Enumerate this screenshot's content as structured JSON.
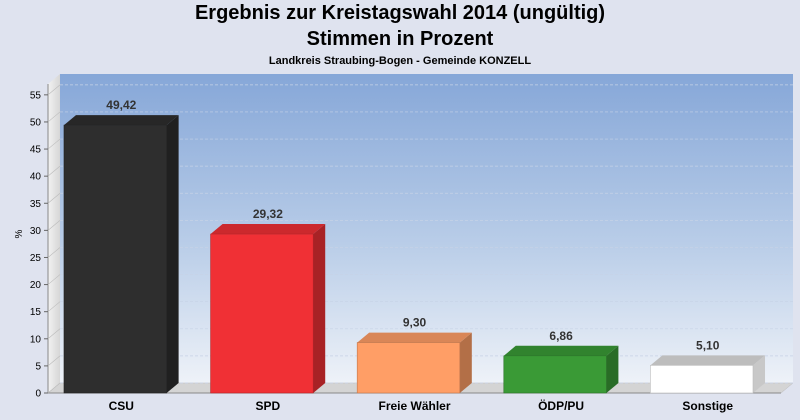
{
  "chart_data": {
    "type": "bar",
    "title": "Ergebnis zur Kreistagswahl 2014 (ungültig)",
    "title_line2": "Stimmen in Prozent",
    "subtitle": "Landkreis Straubing-Bogen - Gemeinde KONZELL",
    "ylabel": "%",
    "xlabel": "",
    "ylim": [
      0,
      57
    ],
    "yticks": [
      0,
      5,
      10,
      15,
      20,
      25,
      30,
      35,
      40,
      45,
      50,
      55
    ],
    "grid": true,
    "categories": [
      "CSU",
      "SPD",
      "Freie Wähler",
      "ÖDP/PU",
      "Sonstige"
    ],
    "values": [
      49.42,
      29.32,
      9.3,
      6.86,
      5.1
    ],
    "value_labels": [
      "49,42",
      "29,32",
      "9,30",
      "6,86",
      "5,10"
    ],
    "colors": [
      "#2e2e2e",
      "#f03035",
      "#ff9e66",
      "#3a9a36",
      "#ffffff"
    ]
  }
}
